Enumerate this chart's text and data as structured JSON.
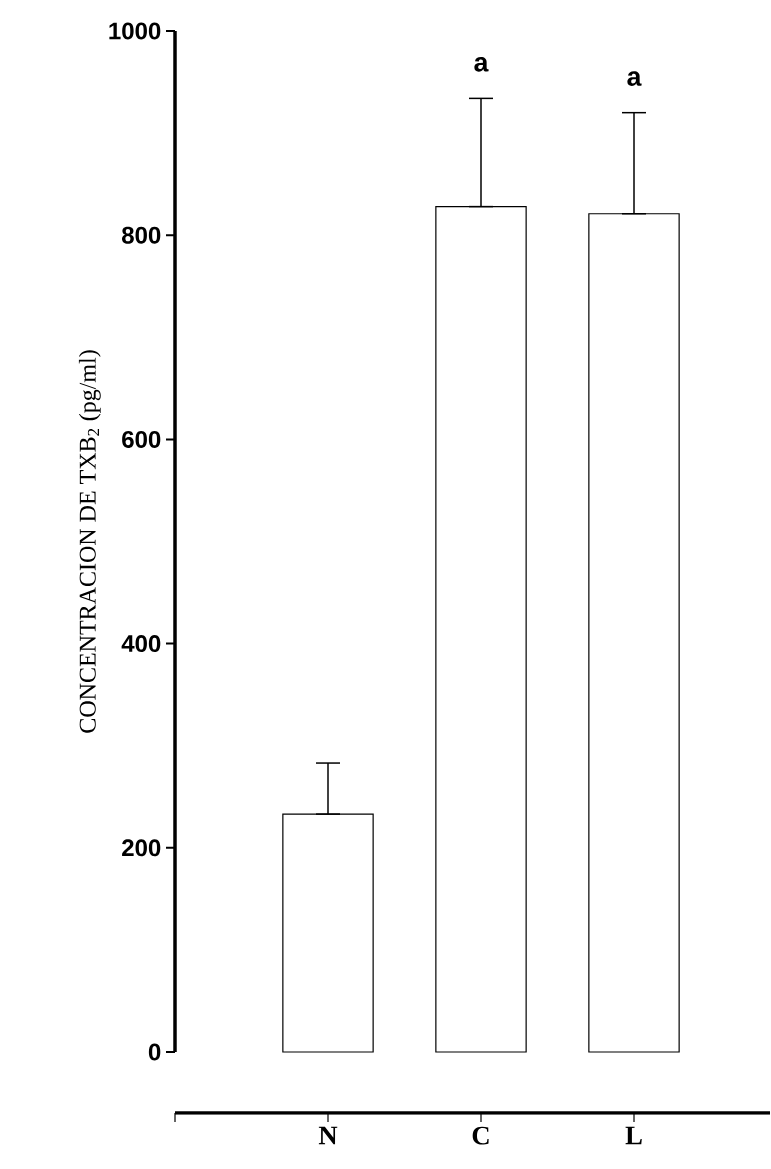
{
  "chart_data": {
    "type": "bar",
    "ylabel": "CONCENTRACION DE TXB$_{2}$ (pg/ml)",
    "categories": [
      "N",
      "C",
      "L"
    ],
    "values": [
      233,
      828,
      821
    ],
    "errors": [
      [
        233,
        283
      ],
      [
        828,
        934
      ],
      [
        821,
        920
      ]
    ],
    "color": "#ffffff",
    "ylim": [
      0,
      1000
    ],
    "yticks": [
      0,
      200,
      400,
      600,
      800,
      1000
    ],
    "annotations": [
      {
        "text": "a",
        "x": "C",
        "y": 934
      },
      {
        "text": "a",
        "x": "L",
        "y": 920
      }
    ]
  }
}
